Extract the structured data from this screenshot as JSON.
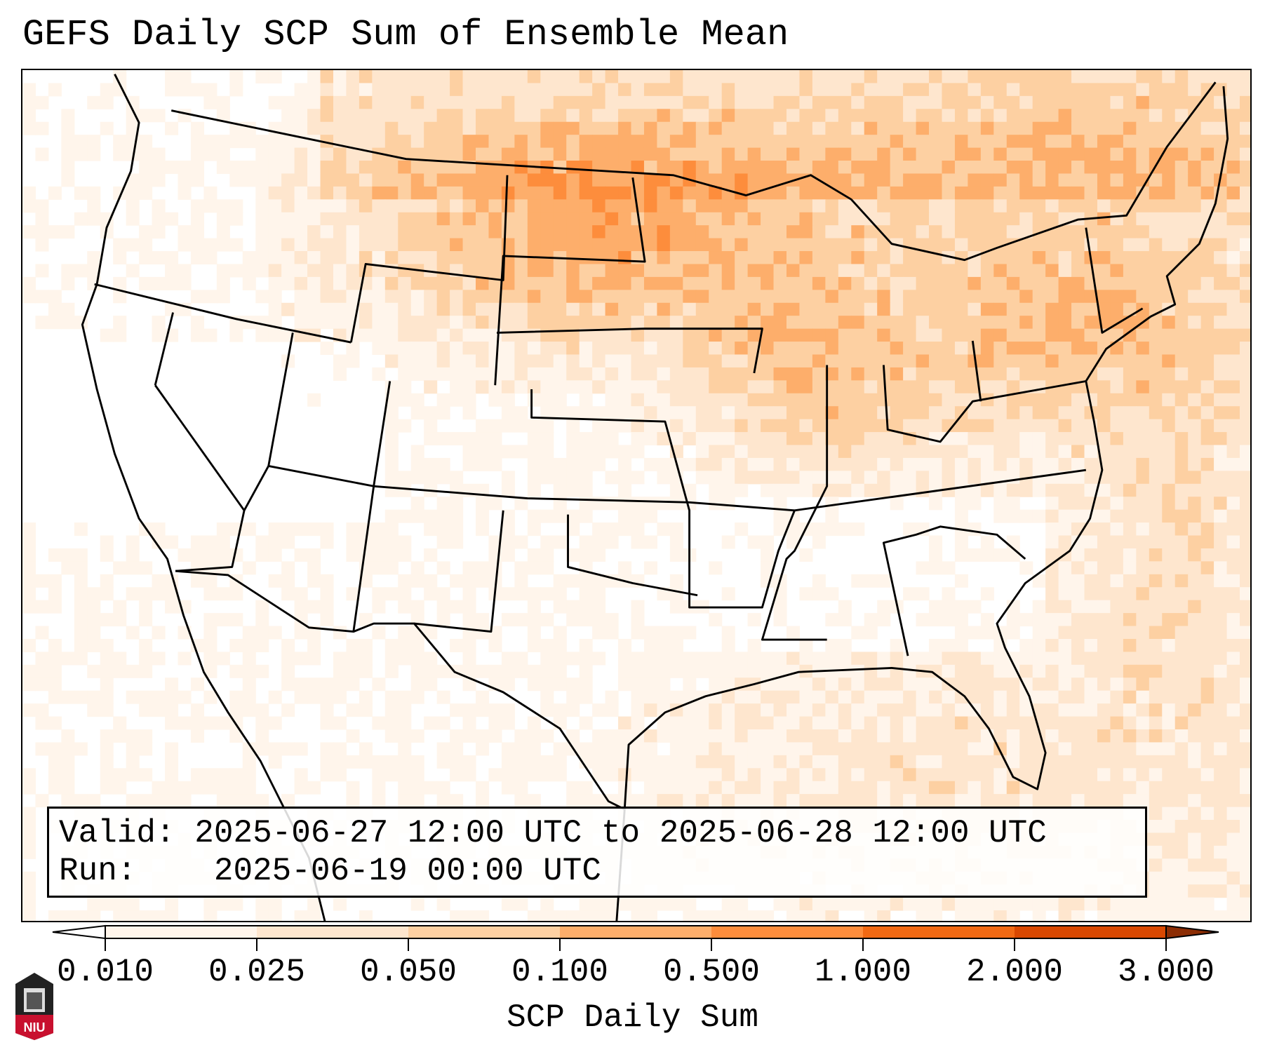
{
  "title": "GEFS Daily SCP Sum of Ensemble Mean",
  "info": {
    "valid_label": "Valid:",
    "valid_value": "2025-06-27 12:00 UTC to 2025-06-28 12:00 UTC",
    "run_label": "Run:",
    "run_value": "2025-06-19 00:00 UTC"
  },
  "colorbar": {
    "label": "SCP Daily Sum",
    "ticks": [
      "0.010",
      "0.025",
      "0.050",
      "0.100",
      "0.500",
      "1.000",
      "2.000",
      "3.000"
    ],
    "colors": [
      "#ffffff",
      "#fff5eb",
      "#fee6ce",
      "#fdd0a2",
      "#fdae6b",
      "#fd8d3c",
      "#f16913",
      "#d94801",
      "#8c2d04"
    ],
    "extend": "both"
  },
  "logo": {
    "text": "NIU"
  }
}
